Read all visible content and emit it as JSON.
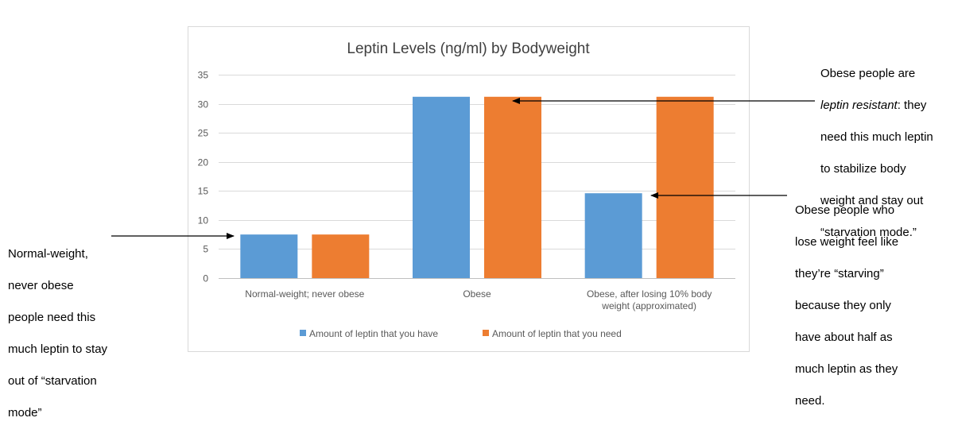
{
  "chart_data": {
    "type": "bar",
    "title": "Leptin Levels (ng/ml) by Bodyweight",
    "xlabel": "",
    "ylabel": "",
    "ylim": [
      0,
      35
    ],
    "yticks": [
      0,
      5,
      10,
      15,
      20,
      25,
      30,
      35
    ],
    "grid": true,
    "legend_position": "bottom",
    "categories": [
      "Normal-weight; never obese",
      "Obese",
      "Obese, after losing 10% body weight (approximated)"
    ],
    "series": [
      {
        "name": "Amount of leptin that you have",
        "color": "#5B9BD5",
        "values": [
          7.5,
          31.2,
          14.6
        ]
      },
      {
        "name": "Amount of leptin that you need",
        "color": "#ED7D31",
        "values": [
          7.5,
          31.2,
          31.2
        ]
      }
    ]
  },
  "annotations": {
    "left": {
      "lines": [
        "Normal-weight,",
        "never obese",
        "people need this",
        "much leptin to stay",
        "out of “starvation",
        "mode”"
      ]
    },
    "top_right": {
      "line1": "Obese people are",
      "line2_emphasis": "leptin resistant",
      "line2_rest": ": they",
      "rest": [
        "need this much leptin",
        "to stabilize body",
        "weight and stay out",
        "“starvation mode.”"
      ]
    },
    "bottom_right": {
      "lines": [
        "Obese people who",
        "lose weight feel like",
        "they’re “starving”",
        "because they only",
        "have about half as",
        "much leptin as they",
        "need."
      ]
    }
  }
}
